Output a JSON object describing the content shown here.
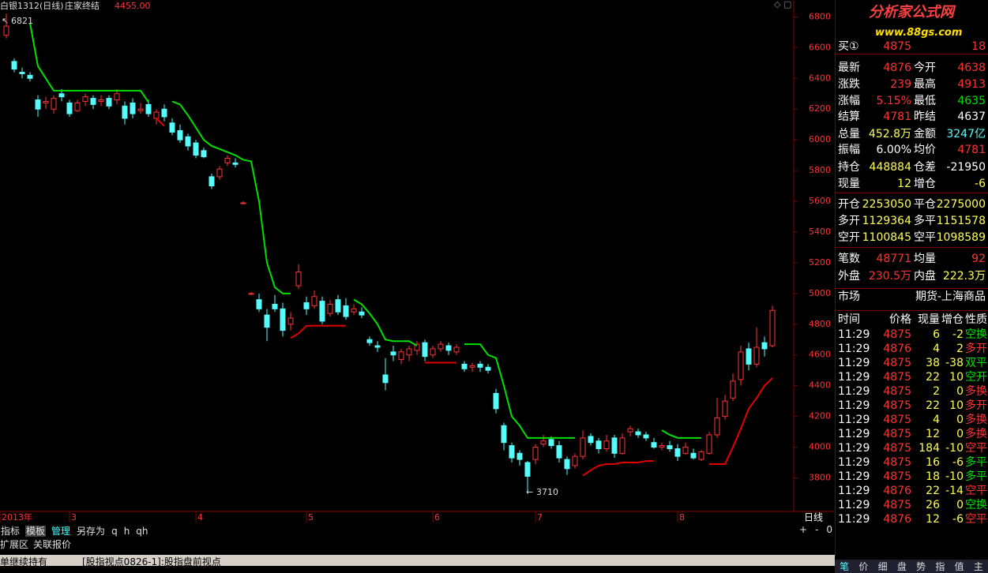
{
  "header": {
    "symbol": "白银1312(日线)",
    "indicator": "庄家终结",
    "value": "4455.00"
  },
  "chart_data": {
    "type": "candlestick",
    "up_color": "#ff3232",
    "down_color": "#54fcfc",
    "candles": [
      [
        6680,
        6821,
        6660,
        6740
      ],
      [
        6510,
        6530,
        6440,
        6460
      ],
      [
        6440,
        6470,
        6400,
        6430
      ],
      [
        6420,
        6440,
        6380,
        6400
      ],
      [
        6260,
        6290,
        6150,
        6200
      ],
      [
        6240,
        6280,
        6200,
        6250
      ],
      [
        6200,
        6290,
        6170,
        6270
      ],
      [
        6300,
        6330,
        6250,
        6280
      ],
      [
        6240,
        6260,
        6150,
        6170
      ],
      [
        6190,
        6260,
        6180,
        6240
      ],
      [
        6250,
        6300,
        6220,
        6280
      ],
      [
        6270,
        6290,
        6200,
        6230
      ],
      [
        6250,
        6290,
        6220,
        6260
      ],
      [
        6270,
        6290,
        6200,
        6220
      ],
      [
        6260,
        6330,
        6230,
        6300
      ],
      [
        6220,
        6250,
        6100,
        6140
      ],
      [
        6240,
        6270,
        6140,
        6170
      ],
      [
        6190,
        6240,
        6170,
        6200
      ],
      [
        6230,
        6260,
        6150,
        6170
      ],
      [
        6140,
        6200,
        6100,
        6180
      ],
      [
        6200,
        6230,
        6120,
        6150
      ],
      [
        6110,
        6140,
        6030,
        6050
      ],
      [
        6060,
        6100,
        5980,
        6000
      ],
      [
        6020,
        6040,
        5930,
        5960
      ],
      [
        5980,
        6000,
        5880,
        5900
      ],
      [
        5930,
        5950,
        5880,
        5890
      ],
      [
        5760,
        5780,
        5680,
        5700
      ],
      [
        5760,
        5830,
        5740,
        5810
      ],
      [
        5850,
        5900,
        5830,
        5880
      ],
      [
        5850,
        5880,
        5820,
        5840
      ],
      [
        5590,
        5600,
        5580,
        5590
      ],
      [
        5000,
        5010,
        4990,
        5000
      ],
      [
        4960,
        5000,
        4880,
        4900
      ],
      [
        4860,
        4900,
        4690,
        4780
      ],
      [
        4930,
        4990,
        4880,
        4900
      ],
      [
        4900,
        4940,
        4720,
        4760
      ],
      [
        4800,
        4880,
        4760,
        4840
      ],
      [
        5050,
        5190,
        5030,
        5140
      ],
      [
        4940,
        4980,
        4860,
        4900
      ],
      [
        4920,
        5020,
        4900,
        4980
      ],
      [
        4950,
        4980,
        4800,
        4820
      ],
      [
        4870,
        4960,
        4850,
        4930
      ],
      [
        4960,
        4990,
        4860,
        4880
      ],
      [
        4920,
        4970,
        4830,
        4850
      ],
      [
        4880,
        4930,
        4860,
        4900
      ],
      [
        4880,
        4910,
        4840,
        4860
      ],
      [
        4700,
        4720,
        4660,
        4680
      ],
      [
        4660,
        4690,
        4620,
        4650
      ],
      [
        4470,
        4580,
        4370,
        4420
      ],
      [
        4620,
        4660,
        4560,
        4600
      ],
      [
        4570,
        4640,
        4540,
        4620
      ],
      [
        4600,
        4660,
        4560,
        4640
      ],
      [
        4630,
        4690,
        4600,
        4670
      ],
      [
        4680,
        4700,
        4560,
        4590
      ],
      [
        4600,
        4660,
        4580,
        4640
      ],
      [
        4640,
        4690,
        4620,
        4670
      ],
      [
        4660,
        4680,
        4600,
        4630
      ],
      [
        4620,
        4670,
        4600,
        4650
      ],
      [
        4540,
        4560,
        4490,
        4510
      ],
      [
        4520,
        4550,
        4490,
        4530
      ],
      [
        4540,
        4560,
        4490,
        4520
      ],
      [
        4520,
        4540,
        4480,
        4500
      ],
      [
        4350,
        4380,
        4220,
        4250
      ],
      [
        4140,
        4160,
        3980,
        4030
      ],
      [
        4010,
        4030,
        3900,
        3930
      ],
      [
        3960,
        3980,
        3880,
        3920
      ],
      [
        3900,
        3910,
        3710,
        3810
      ],
      [
        3920,
        4020,
        3890,
        4000
      ],
      [
        4020,
        4080,
        4000,
        4040
      ],
      [
        4050,
        4070,
        3990,
        4010
      ],
      [
        4010,
        4040,
        3900,
        3930
      ],
      [
        3920,
        3940,
        3820,
        3860
      ],
      [
        3880,
        3960,
        3860,
        3940
      ],
      [
        3940,
        4110,
        3920,
        4060
      ],
      [
        4070,
        4090,
        4010,
        4030
      ],
      [
        4040,
        4060,
        3960,
        3990
      ],
      [
        3990,
        4080,
        3970,
        4040
      ],
      [
        4060,
        4080,
        3930,
        3960
      ],
      [
        3960,
        4090,
        3950,
        4060
      ],
      [
        4100,
        4140,
        4070,
        4120
      ],
      [
        4100,
        4120,
        4060,
        4080
      ],
      [
        4080,
        4100,
        4040,
        4060
      ],
      [
        4030,
        4060,
        3990,
        4000
      ],
      [
        4000,
        4030,
        3980,
        4010
      ],
      [
        4010,
        4040,
        3970,
        3990
      ],
      [
        3990,
        4020,
        3910,
        3940
      ],
      [
        3960,
        4030,
        3950,
        4000
      ],
      [
        3960,
        3990,
        3920,
        3930
      ],
      [
        3920,
        3980,
        3910,
        3970
      ],
      [
        3960,
        4100,
        3950,
        4080
      ],
      [
        4080,
        4320,
        4060,
        4190
      ],
      [
        4200,
        4340,
        4180,
        4300
      ],
      [
        4320,
        4480,
        4300,
        4430
      ],
      [
        4440,
        4660,
        4400,
        4620
      ],
      [
        4640,
        4680,
        4500,
        4540
      ],
      [
        4540,
        4780,
        4520,
        4650
      ],
      [
        4680,
        4720,
        4590,
        4640
      ],
      [
        4660,
        4920,
        4650,
        4890
      ]
    ],
    "upper_stop": {
      "color": "#00e000",
      "values": [
        null,
        null,
        null,
        6760,
        6480,
        6400,
        6320,
        6320,
        6320,
        6320,
        6320,
        6320,
        6320,
        6320,
        6320,
        6320,
        6320,
        6320,
        6245,
        null,
        null,
        6250,
        6230,
        6160,
        6080,
        6000,
        5960,
        5940,
        5920,
        5900,
        5870,
        5860,
        5600,
        5200,
        5040,
        5000,
        5000,
        null,
        null,
        null,
        null,
        null,
        null,
        null,
        4960,
        4930,
        4870,
        4800,
        4700,
        4690,
        4690,
        4690,
        4660,
        null,
        null,
        null,
        null,
        null,
        4670,
        4670,
        4670,
        4600,
        4580,
        4400,
        4200,
        4140,
        4060,
        4060,
        4060,
        4060,
        4060,
        4060,
        4060,
        null,
        null,
        null,
        null,
        null,
        null,
        null,
        null,
        null,
        null,
        4110,
        4080,
        4060,
        4060,
        4060,
        4060,
        null,
        null,
        null,
        null,
        null,
        null,
        null,
        null,
        null
      ]
    },
    "lower_stop": {
      "color": "#e00000",
      "values": [
        null,
        null,
        null,
        null,
        null,
        null,
        null,
        null,
        null,
        null,
        null,
        null,
        null,
        null,
        null,
        null,
        null,
        null,
        null,
        6140,
        6090,
        null,
        null,
        null,
        null,
        null,
        null,
        null,
        null,
        null,
        null,
        null,
        null,
        null,
        null,
        null,
        4710,
        4740,
        4790,
        4790,
        4790,
        4790,
        4790,
        4790,
        null,
        null,
        null,
        null,
        null,
        null,
        null,
        null,
        null,
        4550,
        4550,
        4550,
        4550,
        4550,
        null,
        null,
        null,
        null,
        null,
        null,
        null,
        null,
        null,
        null,
        null,
        null,
        null,
        null,
        null,
        3815,
        3850,
        3880,
        3890,
        3890,
        3900,
        3900,
        3900,
        3910,
        3910,
        null,
        null,
        null,
        null,
        null,
        null,
        3890,
        3890,
        3890,
        4000,
        4120,
        4250,
        4320,
        4400,
        4450
      ]
    },
    "xticks": [
      {
        "value": 0,
        "label": "2013年"
      },
      {
        "value": 8,
        "label": "3"
      },
      {
        "value": 24,
        "label": "4"
      },
      {
        "value": 38,
        "label": "5"
      },
      {
        "value": 54,
        "label": "6"
      },
      {
        "value": 67,
        "label": "7"
      },
      {
        "value": 85,
        "label": "8"
      }
    ],
    "ylim": [
      3520,
      6910
    ],
    "yticks": [
      3800,
      4000,
      4200,
      4400,
      4600,
      4800,
      5000,
      5200,
      5400,
      5600,
      5800,
      6000,
      6200,
      6400,
      6600,
      6800
    ],
    "period": "日线"
  },
  "quote": {
    "logo": "分析家公式网",
    "site": "www.88gs.com",
    "top": [
      "买①",
      "4875",
      "18"
    ],
    "rows": [
      [
        "最新",
        "4876",
        "今开",
        "4638"
      ],
      [
        "涨跌",
        "239",
        "最高",
        "4913"
      ],
      [
        "涨幅",
        "5.15%",
        "最低",
        "4635"
      ],
      [
        "结算",
        "4781",
        "昨结",
        "4637"
      ],
      [
        "总量",
        "452.8万",
        "金额",
        "3247亿"
      ],
      [
        "振幅",
        "6.00%",
        "均价",
        "4781"
      ],
      [
        "持仓",
        "448884",
        "仓差",
        "-21950"
      ],
      [
        "现量",
        "12",
        "增仓",
        "-6"
      ],
      [
        "开仓",
        "2253050",
        "平仓",
        "2275000"
      ],
      [
        "多开",
        "1129364",
        "多平",
        "1151578"
      ],
      [
        "空开",
        "1100845",
        "空平",
        "1098589"
      ],
      [
        "笔数",
        "48771",
        "均量",
        "92"
      ],
      [
        "外盘",
        "230.5万",
        "内盘",
        "222.3万"
      ]
    ],
    "market": [
      "市场",
      "期货-上海商品"
    ],
    "tick_header": [
      "时间",
      "价格",
      "现量",
      "增仓",
      "性质"
    ],
    "ticks": [
      [
        "11:29",
        "4875",
        "6",
        "-2",
        "空换",
        "#00e000"
      ],
      [
        "11:29",
        "4876",
        "4",
        "2",
        "多开",
        "#ff3232"
      ],
      [
        "11:29",
        "4875",
        "38",
        "-38",
        "双平",
        "#00e000"
      ],
      [
        "11:29",
        "4875",
        "22",
        "10",
        "空开",
        "#00e000"
      ],
      [
        "11:29",
        "4875",
        "2",
        "0",
        "多换",
        "#ff3232"
      ],
      [
        "11:29",
        "4875",
        "22",
        "10",
        "多开",
        "#ff3232"
      ],
      [
        "11:29",
        "4875",
        "4",
        "0",
        "多换",
        "#ff3232"
      ],
      [
        "11:29",
        "4875",
        "12",
        "0",
        "多换",
        "#ff3232"
      ],
      [
        "11:29",
        "4875",
        "184",
        "-10",
        "空平",
        "#ff3232"
      ],
      [
        "11:29",
        "4875",
        "16",
        "-6",
        "多平",
        "#00e000"
      ],
      [
        "11:29",
        "4875",
        "18",
        "-10",
        "多平",
        "#00e000"
      ],
      [
        "11:29",
        "4876",
        "22",
        "-14",
        "空平",
        "#ff3232"
      ],
      [
        "11:29",
        "4875",
        "26",
        "0",
        "空换",
        "#00e000"
      ],
      [
        "11:29",
        "4876",
        "12",
        "-6",
        "空平",
        "#ff3232"
      ]
    ]
  },
  "toolbar": [
    "指标",
    "模板",
    "管理",
    "另存为",
    "q",
    "h",
    "qh"
  ],
  "panel_tabs": [
    "扩展区",
    "关联报价"
  ],
  "zoom": [
    "+",
    "-",
    "0"
  ],
  "side_tabs": [
    "笔",
    "价",
    "细",
    "盘",
    "势",
    "指",
    "值",
    "主"
  ],
  "status": [
    "单继续持有",
    "[股指视点0826-1]:股指盘前视点"
  ]
}
